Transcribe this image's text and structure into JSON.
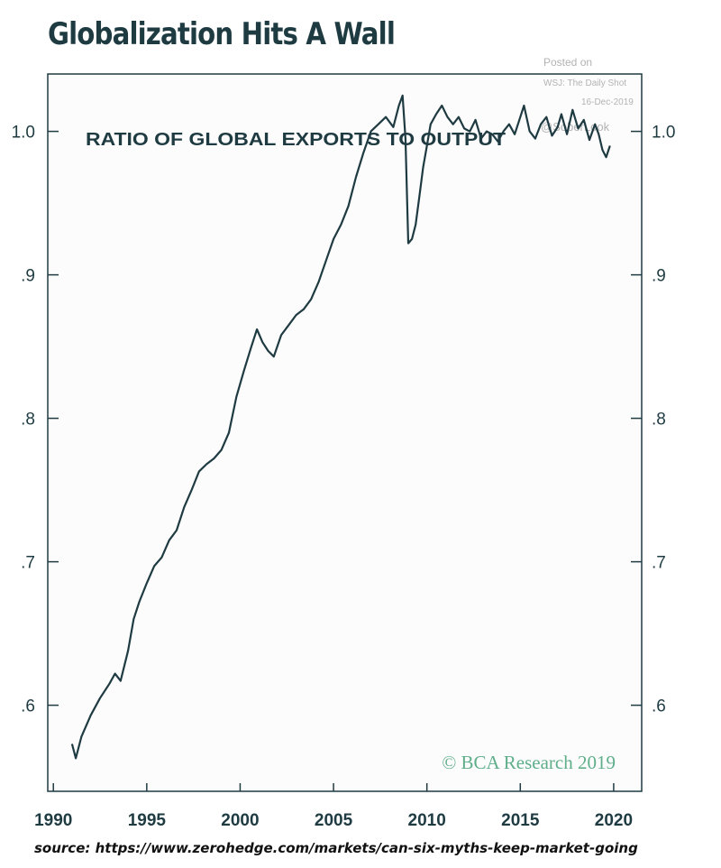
{
  "header": {
    "title": "Globalization Hits A Wall"
  },
  "posted": {
    "line1": "Posted on",
    "line2": "WSJ: The Daily Shot",
    "line3": "16-Dec-2019",
    "handle": "@SoberLook"
  },
  "credit": "© BCA Research 2019",
  "source": "source: https://www.zerohedge.com/markets/can-six-myths-keep-market-going",
  "colors": {
    "line": "#1f3b42",
    "frame": "#1f3b42",
    "plot_bg": "#fdfcfd",
    "credit": "#5fae8a",
    "posted": "#b3b3b3"
  },
  "chart_data": {
    "type": "line",
    "title": "RATIO OF GLOBAL EXPORTS TO OUTPUT",
    "xlabel": "",
    "ylabel": "",
    "xlim": [
      1989.7,
      2021.5
    ],
    "ylim": [
      0.54,
      1.04
    ],
    "x_ticks": [
      1990,
      1995,
      2000,
      2005,
      2010,
      2015,
      2020
    ],
    "x_tick_labels": [
      "1990",
      "1995",
      "2000",
      "2005",
      "2010",
      "2015",
      "2020"
    ],
    "y_ticks": [
      0.6,
      0.7,
      0.8,
      0.9,
      1.0
    ],
    "y_tick_labels_left": [
      ".6",
      ".7",
      ".8",
      ".9",
      "1.0"
    ],
    "y_tick_labels_right": [
      ".6",
      ".7",
      ".8",
      ".9",
      "1.0"
    ],
    "grid": false,
    "series": [
      {
        "x": [
          1991.0,
          1991.2,
          1991.5,
          1992.0,
          1992.5,
          1993.0,
          1993.3,
          1993.6,
          1994.0,
          1994.3,
          1994.6,
          1995.0,
          1995.4,
          1995.8,
          1996.2,
          1996.6,
          1997.0,
          1997.4,
          1997.8,
          1998.2,
          1998.6,
          1999.0,
          1999.4,
          1999.8,
          2000.2,
          2000.6,
          2000.9,
          2001.2,
          2001.5,
          2001.8,
          2002.2,
          2002.6,
          2003.0,
          2003.4,
          2003.8,
          2004.2,
          2004.6,
          2005.0,
          2005.4,
          2005.8,
          2006.2,
          2006.6,
          2007.0,
          2007.4,
          2007.8,
          2008.2,
          2008.5,
          2008.7,
          2008.85,
          2009.0,
          2009.2,
          2009.4,
          2009.6,
          2009.8,
          2010.0,
          2010.2,
          2010.5,
          2010.8,
          2011.1,
          2011.4,
          2011.7,
          2012.0,
          2012.3,
          2012.6,
          2012.9,
          2013.2,
          2013.5,
          2013.8,
          2014.1,
          2014.4,
          2014.7,
          2015.0,
          2015.2,
          2015.5,
          2015.8,
          2016.1,
          2016.4,
          2016.7,
          2017.0,
          2017.2,
          2017.5,
          2017.8,
          2018.1,
          2018.4,
          2018.7,
          2019.0,
          2019.2,
          2019.4,
          2019.6,
          2019.8
        ],
        "y": [
          0.573,
          0.563,
          0.578,
          0.593,
          0.605,
          0.615,
          0.622,
          0.617,
          0.638,
          0.66,
          0.672,
          0.685,
          0.697,
          0.703,
          0.715,
          0.722,
          0.738,
          0.75,
          0.763,
          0.768,
          0.772,
          0.778,
          0.79,
          0.815,
          0.833,
          0.85,
          0.862,
          0.853,
          0.847,
          0.843,
          0.858,
          0.865,
          0.872,
          0.876,
          0.883,
          0.895,
          0.91,
          0.925,
          0.935,
          0.948,
          0.968,
          0.985,
          1.0,
          1.005,
          1.01,
          1.003,
          1.018,
          1.025,
          0.995,
          0.922,
          0.925,
          0.935,
          0.955,
          0.975,
          0.99,
          1.005,
          1.012,
          1.018,
          1.01,
          1.005,
          1.01,
          1.002,
          1.0,
          1.008,
          0.995,
          1.0,
          0.998,
          0.993,
          1.0,
          1.005,
          0.998,
          1.01,
          1.018,
          1.0,
          0.995,
          1.005,
          1.01,
          0.997,
          1.003,
          1.012,
          0.998,
          1.015,
          1.002,
          1.008,
          0.994,
          1.005,
          0.998,
          0.987,
          0.982,
          0.99
        ]
      }
    ]
  }
}
